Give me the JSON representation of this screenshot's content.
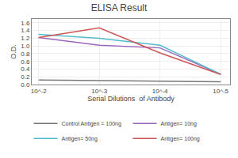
{
  "chart_data": {
    "type": "line",
    "title": "ELISA Result",
    "xlabel": "Serial Dilutions  of Antibody",
    "ylabel": "O.D.",
    "x": [
      0.01,
      0.001,
      0.0001,
      1e-05
    ],
    "series": [
      {
        "name": "Control Antigen = 100ng",
        "color": "#777777",
        "values": [
          0.12,
          0.1,
          0.08,
          0.07
        ]
      },
      {
        "name": "Antigen= 10ng",
        "color": "#9966bb",
        "values": [
          1.22,
          1.02,
          0.95,
          0.27
        ]
      },
      {
        "name": "Antigen= 50ng",
        "color": "#55bbcc",
        "values": [
          1.3,
          1.2,
          1.02,
          0.27
        ]
      },
      {
        "name": "Antigen= 100ng",
        "color": "#cc5555",
        "values": [
          1.22,
          1.47,
          0.82,
          0.26
        ]
      }
    ],
    "log": "x",
    "xlim": [
      0.013,
      7e-06
    ],
    "xticks": [
      {
        "value": 0.01,
        "label": "10^-2"
      },
      {
        "value": 0.001,
        "label": "10^-3"
      },
      {
        "value": 0.0001,
        "label": "10^-4"
      },
      {
        "value": 1e-05,
        "label": "10^-5"
      }
    ],
    "ylim": [
      0,
      1.7
    ],
    "yticks": [
      {
        "value": 0,
        "label": "0.0"
      },
      0.2,
      0.4,
      0.6,
      0.8,
      {
        "value": 1.0,
        "label": "1.0"
      },
      1.2,
      1.4,
      1.6
    ],
    "grid": true,
    "legend": "bottom"
  }
}
